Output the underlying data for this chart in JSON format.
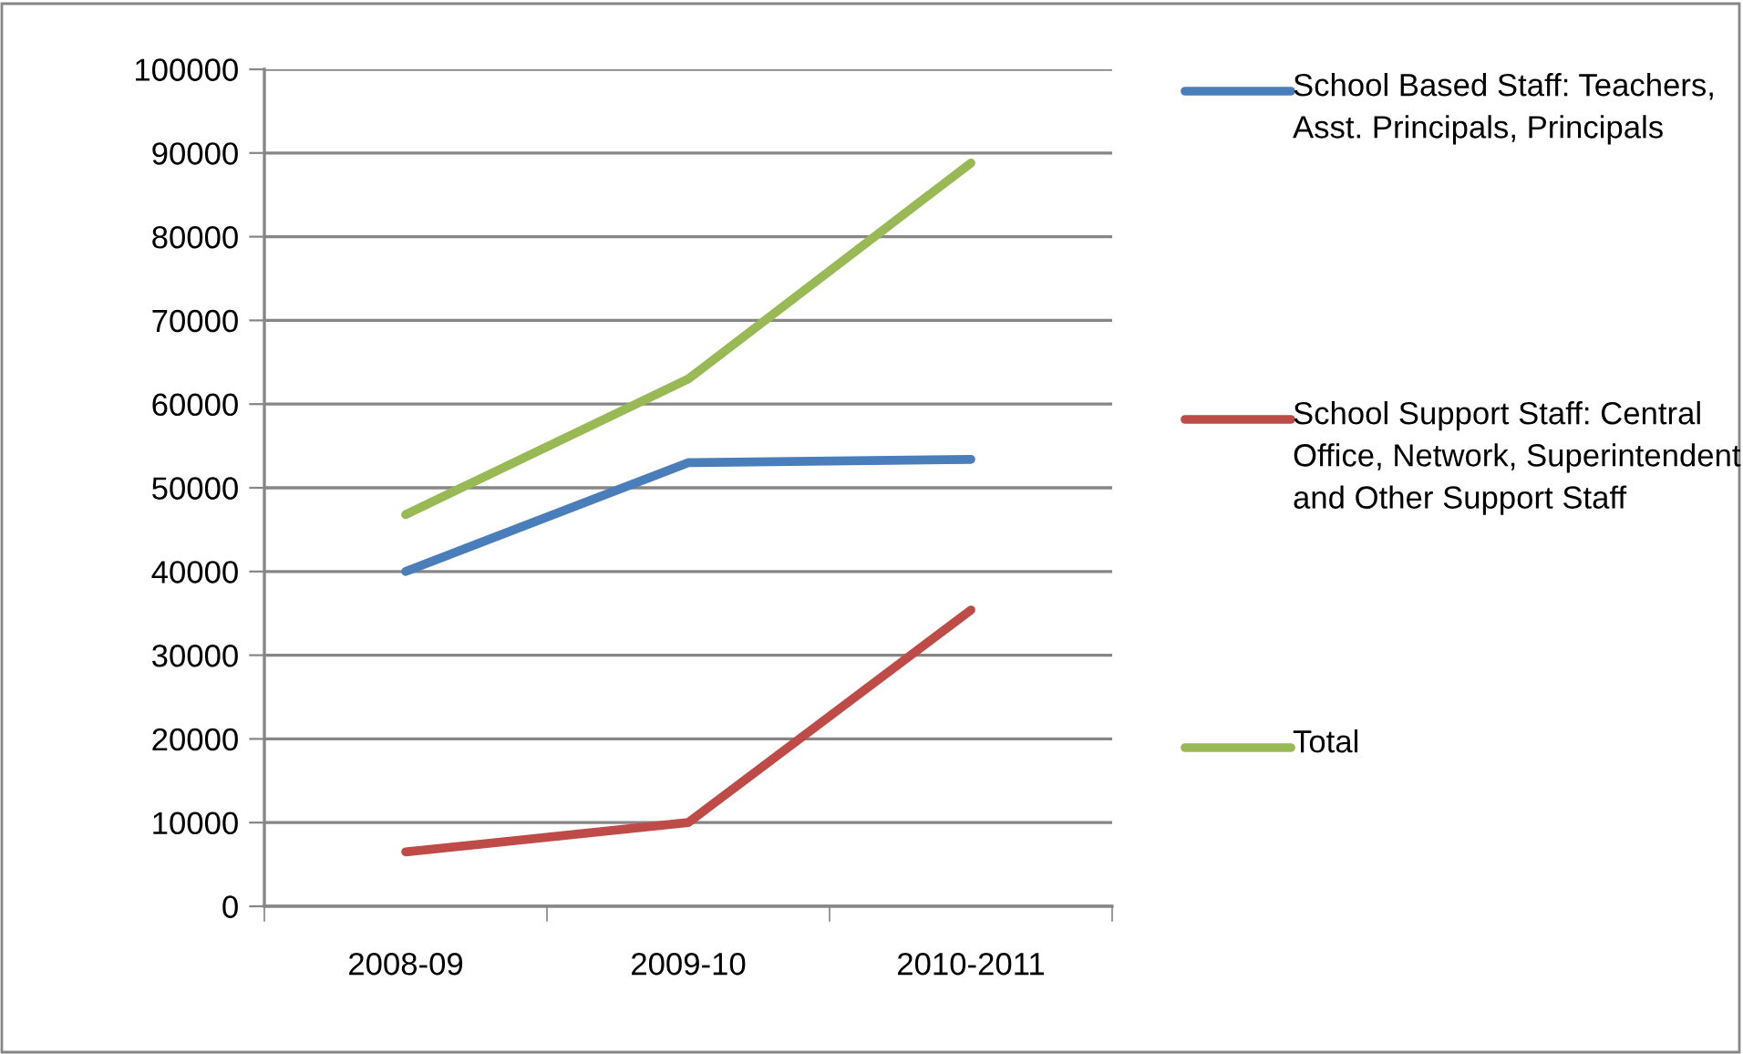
{
  "chart_data": {
    "type": "line",
    "categories": [
      "2008-09",
      "2009-10",
      "2010-2011"
    ],
    "series": [
      {
        "name": "School Based Staff: Teachers, Asst. Principals, Principals",
        "color": "#4a7ebb",
        "values": [
          40000,
          53000,
          53400
        ]
      },
      {
        "name": "School Support Staff: Central Office, Network, Superintendent and Other Support Staff",
        "color": "#be4b48",
        "values": [
          6500,
          10000,
          35400
        ]
      },
      {
        "name": "Total",
        "color": "#98b954",
        "values": [
          46800,
          63000,
          88800
        ]
      }
    ],
    "ylim": [
      0,
      100000
    ],
    "yticks": [
      0,
      10000,
      20000,
      30000,
      40000,
      50000,
      60000,
      70000,
      80000,
      90000,
      100000
    ],
    "grid": "y",
    "legend": "right",
    "marker": "none",
    "line_style": "solid"
  }
}
